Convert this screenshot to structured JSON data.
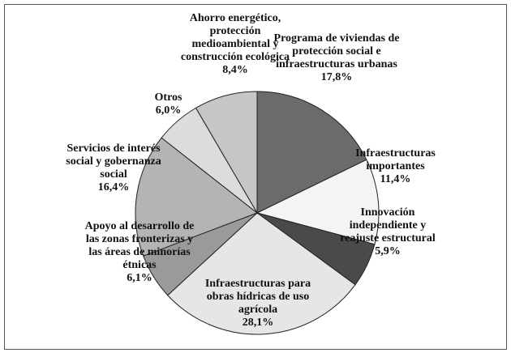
{
  "chart_data": {
    "type": "pie",
    "categories": [
      "Programa de viviendas de protección social e infraestructuras urbanas",
      "Infraestructuras importantes",
      "Innovación independiente y reajuste estructural",
      "Infraestructuras para obras hídricas de uso agrícola",
      "Apoyo al desarrollo de las zonas fronterizas y las áreas de minorías étnicas",
      "Servicios de interés social y gobernanza social",
      "Otros",
      "Ahorro energético, protección medioambiental y construcción ecológica"
    ],
    "values": [
      17.8,
      11.4,
      5.9,
      28.1,
      6.1,
      16.4,
      6.0,
      8.4
    ],
    "value_labels": [
      "17,8%",
      "11,4%",
      "5,9%",
      "28,1%",
      "6,1%",
      "16,4%",
      "6,0%",
      "8,4%"
    ],
    "colors": [
      "#6b6b6b",
      "#f4f4f4",
      "#4a4a4a",
      "#e6e6e6",
      "#9a9a9a",
      "#b4b4b4",
      "#dcdcdc",
      "#c6c6c6"
    ]
  }
}
